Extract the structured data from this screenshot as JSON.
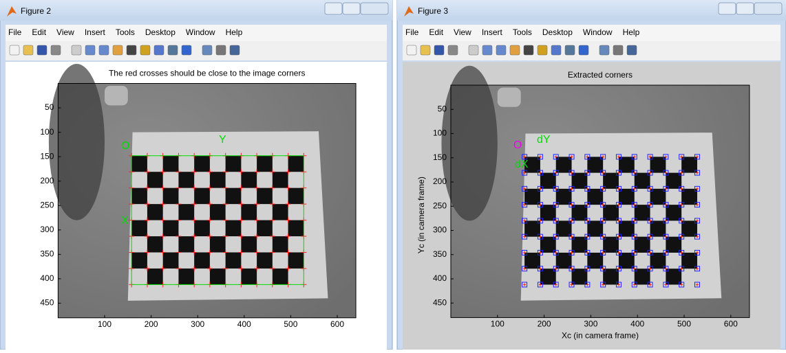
{
  "windows": [
    {
      "title": "Figure 2",
      "menu": [
        "File",
        "Edit",
        "View",
        "Insert",
        "Tools",
        "Desktop",
        "Window",
        "Help"
      ],
      "axes": {
        "title": "The red crosses should be close to the image corners",
        "xlim": [
          0,
          640
        ],
        "ylim": [
          0,
          480
        ],
        "xticks": [
          100,
          200,
          300,
          400,
          500,
          600
        ],
        "yticks": [
          50,
          100,
          150,
          200,
          250,
          300,
          350,
          400,
          450
        ],
        "annotations": [
          "O",
          "Y",
          "X"
        ]
      }
    },
    {
      "title": "Figure 3",
      "menu": [
        "File",
        "Edit",
        "View",
        "Insert",
        "Tools",
        "Desktop",
        "Window",
        "Help"
      ],
      "axes": {
        "title": "Extracted corners",
        "xlabel": "Xc (in camera frame)",
        "ylabel": "Yc (in camera frame)",
        "xlim": [
          0,
          640
        ],
        "ylim": [
          0,
          480
        ],
        "xticks": [
          100,
          200,
          300,
          400,
          500,
          600
        ],
        "yticks": [
          50,
          100,
          150,
          200,
          250,
          300,
          350,
          400,
          450
        ],
        "annotations": [
          "O",
          "dY",
          "dX"
        ]
      }
    }
  ]
}
